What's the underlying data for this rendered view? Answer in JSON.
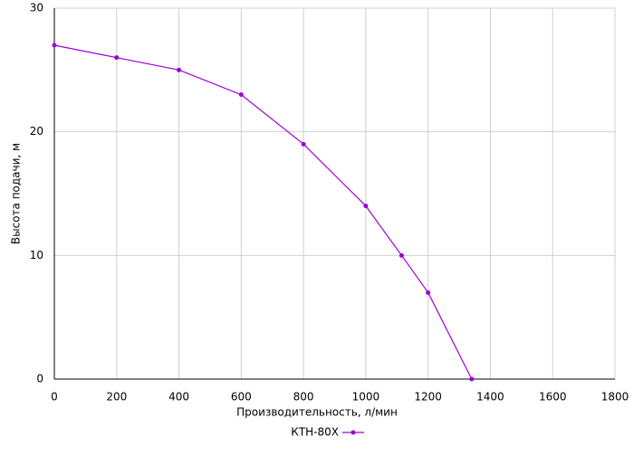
{
  "chart_data": {
    "type": "line",
    "x_label": "Производительность, л/мин",
    "y_label": "Высота подачи, м",
    "x": [
      0,
      200,
      400,
      600,
      800,
      1000,
      1115,
      1200,
      1340
    ],
    "series": [
      {
        "name": "КТН-80Х",
        "color": "#9b00d9",
        "values": [
          27,
          26,
          25,
          23,
          19,
          14,
          10,
          7,
          0
        ]
      }
    ],
    "xlim": [
      0,
      1800
    ],
    "xticks": [
      0,
      200,
      400,
      600,
      800,
      1000,
      1200,
      1400,
      1600,
      1800
    ],
    "ylim": [
      0,
      30
    ],
    "yticks": [
      0,
      10,
      20,
      30
    ],
    "grid": true,
    "legend": "bottom"
  }
}
